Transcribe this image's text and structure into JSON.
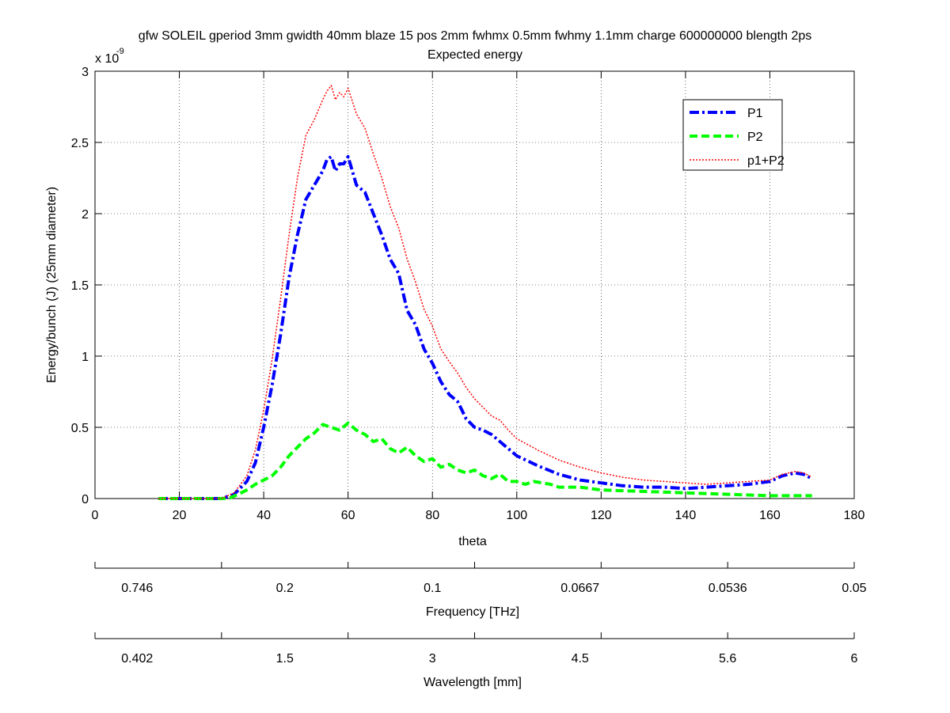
{
  "chart_data": [
    {
      "type": "line",
      "title": "gfw SOLEIL gperiod 3mm gwidth 40mm blaze 15 pos 2mm fwhmx 0.5mm fwhmy 1.1mm charge 600000000 blength 2ps",
      "subtitle": "Expected energy",
      "xlabel": "theta",
      "ylabel": "Energy/bunch (J) (25mm diameter)",
      "y_exponent_label": "x 10",
      "y_exponent_power": "-9",
      "xlim": [
        0,
        180
      ],
      "ylim": [
        0,
        3
      ],
      "x_ticks": [
        0,
        20,
        40,
        60,
        80,
        100,
        120,
        140,
        160,
        180
      ],
      "y_ticks": [
        0,
        0.5,
        1,
        1.5,
        2,
        2.5,
        3
      ],
      "y_tick_labels": [
        "0",
        "0.5",
        "1",
        "1.5",
        "2",
        "2.5",
        "3"
      ],
      "grid": true,
      "legend_position": "top-right",
      "series": [
        {
          "name": "P1",
          "color": "#0000ff",
          "style": "dash-dot",
          "x": [
            15,
            20,
            25,
            30,
            33,
            36,
            38,
            40,
            42,
            44,
            46,
            48,
            50,
            52,
            54,
            55,
            56,
            57,
            58,
            59,
            60,
            62,
            64,
            66,
            68,
            70,
            72,
            74,
            76,
            78,
            80,
            82,
            84,
            86,
            88,
            90,
            92,
            94,
            96,
            98,
            100,
            105,
            110,
            115,
            120,
            125,
            130,
            135,
            140,
            145,
            150,
            155,
            160,
            163,
            166,
            168,
            170
          ],
          "y": [
            0,
            0,
            0,
            0,
            0.03,
            0.12,
            0.25,
            0.5,
            0.8,
            1.15,
            1.55,
            1.85,
            2.1,
            2.2,
            2.3,
            2.38,
            2.4,
            2.3,
            2.35,
            2.35,
            2.4,
            2.2,
            2.15,
            2.0,
            1.85,
            1.68,
            1.58,
            1.32,
            1.22,
            1.05,
            0.95,
            0.82,
            0.73,
            0.68,
            0.56,
            0.5,
            0.48,
            0.45,
            0.4,
            0.35,
            0.3,
            0.23,
            0.17,
            0.13,
            0.11,
            0.09,
            0.08,
            0.08,
            0.07,
            0.08,
            0.09,
            0.1,
            0.12,
            0.16,
            0.18,
            0.17,
            0.14
          ]
        },
        {
          "name": "P2",
          "color": "#00ff00",
          "style": "dashed",
          "x": [
            15,
            20,
            25,
            30,
            32,
            34,
            36,
            38,
            40,
            42,
            44,
            46,
            48,
            50,
            52,
            54,
            56,
            58,
            60,
            62,
            64,
            66,
            68,
            70,
            72,
            74,
            76,
            78,
            80,
            82,
            84,
            86,
            88,
            90,
            92,
            94,
            96,
            98,
            100,
            102,
            104,
            106,
            108,
            110,
            115,
            120,
            130,
            140,
            150,
            160,
            170
          ],
          "y": [
            0,
            0,
            0,
            0,
            0.005,
            0.03,
            0.06,
            0.1,
            0.13,
            0.16,
            0.22,
            0.3,
            0.36,
            0.42,
            0.46,
            0.52,
            0.5,
            0.48,
            0.53,
            0.48,
            0.45,
            0.4,
            0.42,
            0.35,
            0.32,
            0.36,
            0.3,
            0.26,
            0.28,
            0.22,
            0.24,
            0.2,
            0.18,
            0.2,
            0.16,
            0.14,
            0.17,
            0.12,
            0.12,
            0.1,
            0.12,
            0.11,
            0.1,
            0.08,
            0.08,
            0.06,
            0.05,
            0.04,
            0.03,
            0.02,
            0.02
          ]
        },
        {
          "name": "p1+P2",
          "color": "#ff0000",
          "style": "dotted",
          "x": [
            15,
            20,
            25,
            30,
            33,
            36,
            38,
            40,
            42,
            44,
            46,
            48,
            50,
            52,
            54,
            55,
            56,
            57,
            58,
            59,
            60,
            62,
            64,
            66,
            68,
            70,
            72,
            74,
            76,
            78,
            80,
            82,
            84,
            86,
            88,
            90,
            92,
            94,
            96,
            98,
            100,
            105,
            110,
            115,
            120,
            125,
            130,
            135,
            140,
            145,
            150,
            155,
            160,
            163,
            166,
            168,
            170
          ],
          "y": [
            0,
            0,
            0,
            0,
            0.04,
            0.16,
            0.34,
            0.62,
            0.98,
            1.4,
            1.85,
            2.25,
            2.55,
            2.66,
            2.8,
            2.86,
            2.9,
            2.8,
            2.85,
            2.82,
            2.88,
            2.7,
            2.6,
            2.42,
            2.25,
            2.05,
            1.9,
            1.68,
            1.52,
            1.33,
            1.21,
            1.05,
            0.96,
            0.88,
            0.78,
            0.7,
            0.64,
            0.58,
            0.55,
            0.48,
            0.42,
            0.34,
            0.27,
            0.22,
            0.18,
            0.15,
            0.13,
            0.12,
            0.11,
            0.1,
            0.11,
            0.12,
            0.13,
            0.17,
            0.19,
            0.18,
            0.15
          ]
        }
      ]
    },
    {
      "type": "axis",
      "xlabel": "Frequency [THz]",
      "tick_positions_theta": [
        10,
        45,
        80,
        115,
        150,
        180
      ],
      "tick_labels": [
        "0.746",
        "0.2",
        "0.1",
        "0.0667",
        "0.0536",
        "0.05"
      ]
    },
    {
      "type": "axis",
      "xlabel": "Wavelength [mm]",
      "tick_positions_theta": [
        10,
        45,
        80,
        115,
        150,
        180
      ],
      "tick_labels": [
        "0.402",
        "1.5",
        "3",
        "4.5",
        "5.6",
        "6"
      ]
    }
  ]
}
